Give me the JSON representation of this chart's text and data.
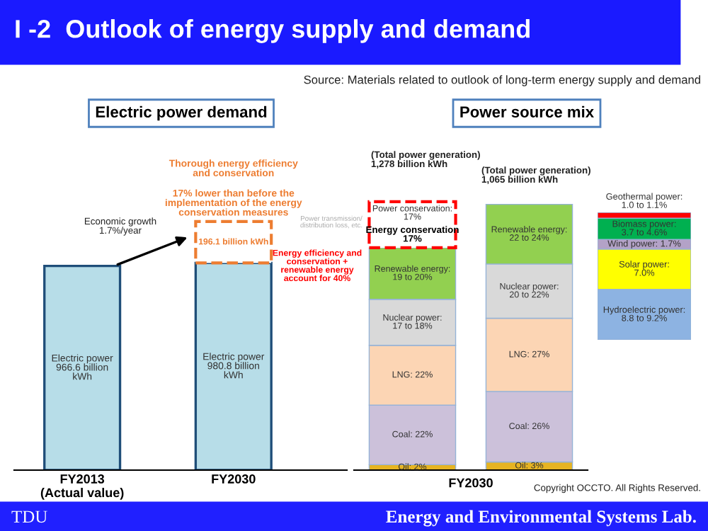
{
  "chart_data": [
    {
      "type": "bar",
      "title": "I -2  Outlook of energy supply and demand",
      "subtitle": "Electric power demand",
      "stacked": true,
      "categories": [
        "FY2013\n(Actual value)",
        "FY2030"
      ],
      "series": [
        {
          "color": "#b7dde8",
          "values": [
            966.6,
            980.8
          ],
          "value_labels": [
            "Electric power\n966.6 billion\nkWh",
            "Electric power\n980.8 billion\nkWh"
          ]
        },
        {
          "color": "#ed7d31",
          "line_style": "dashed",
          "values": [
            null,
            196.1
          ],
          "value_labels": [
            null,
            "196.1 billion kWh"
          ]
        }
      ],
      "annotations": [
        "Source: Materials related to outlook of long-term energy supply and demand",
        "Thorough energy efficiency\nand conservation",
        "17% lower than before the\nimplementation of the energy\nconservation measures",
        "Economic growth\n1.7%/year",
        "Power transmission/\ndistribution loss, etc.",
        "Energy efficiency and\nconservation +\nrenewable energy\naccount for 40%",
        "TDU",
        "Energy and Environmental Systems Lab."
      ]
    },
    {
      "type": "bar",
      "subtitle": "Power source mix",
      "stacked": true,
      "xlabel": "FY2030",
      "categories": [
        null,
        null
      ],
      "series": [
        {
          "color": "#e6b422",
          "values": [
            2,
            3
          ],
          "value_labels": [
            "Oil: 2%",
            "Oil: 3%"
          ]
        },
        {
          "color": "#ccc1da",
          "values": [
            22,
            26
          ],
          "value_labels": [
            "Coal: 22%",
            "Coal: 26%"
          ]
        },
        {
          "color": "#fcd5b4",
          "values": [
            22,
            27
          ],
          "value_labels": [
            "LNG: 22%",
            "LNG: 27%"
          ]
        },
        {
          "color": "#d9d9d9",
          "values": [
            17,
            20
          ],
          "value_labels": [
            "Nuclear power:\n17 to 18%",
            "Nuclear power:\n20 to 22%"
          ]
        },
        {
          "color": "#92d050",
          "values": [
            19,
            22
          ],
          "value_labels": [
            "Renewable energy:\n19 to 20%",
            "Renewable energy:\n22 to 24%"
          ]
        },
        {
          "color": "#ff0000",
          "line_style": "dashed",
          "values": [
            17,
            null
          ],
          "value_labels": [
            "Power conservation:\n17%",
            null
          ]
        }
      ],
      "annotations": [
        "(Total power generation)\n1,278 billion kWh",
        "(Total power generation)\n1,065 billion kWh",
        "Energy conservation\n17%",
        "Copyright OCCTO. All Rights Reserved."
      ]
    },
    {
      "type": "bar",
      "stacked": true,
      "categories": [
        null
      ],
      "series": [
        {
          "color": "#8db3e2",
          "values": [
            8.8
          ],
          "value_labels": [
            "Hydroelectric power:\n8.8 to 9.2%"
          ]
        },
        {
          "color": "#ffff00",
          "values": [
            7.0
          ],
          "value_labels": [
            "Solar power:\n7.0%"
          ]
        },
        {
          "color": "#b3a2c7",
          "values": [
            1.7
          ],
          "value_labels": [
            "Wind power: 1.7%"
          ]
        },
        {
          "color": "#00b050",
          "values": [
            3.7
          ],
          "value_labels": [
            "Biomass power:\n3.7 to 4.6%"
          ]
        },
        {
          "color": "#ff0000",
          "values": [
            1.0
          ],
          "value_labels": [
            "Geothermal power:\n1.0 to 1.1%"
          ]
        }
      ]
    }
  ]
}
